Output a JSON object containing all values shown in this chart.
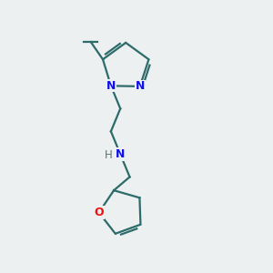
{
  "bg_color": "#edf0f0",
  "bond_color": "#2d6b6b",
  "N_color": "#1010ee",
  "O_color": "#ee1010",
  "C_color": "#000000",
  "H_color": "#607070",
  "line_width": 1.6,
  "fig_size": [
    3.0,
    3.0
  ],
  "dpi": 100,
  "xlim": [
    0,
    10
  ],
  "ylim": [
    0,
    10
  ]
}
